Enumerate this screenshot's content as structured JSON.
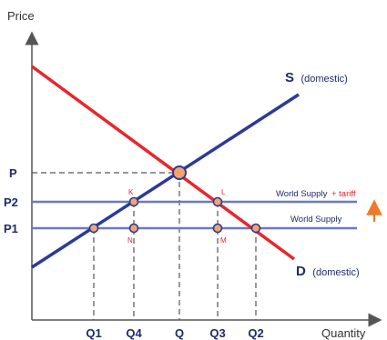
{
  "axes": {
    "y_label": "Price",
    "x_label": "Quantity"
  },
  "price_labels": {
    "p": "P",
    "p2": "P2",
    "p1": "P1"
  },
  "quantity_labels": {
    "q1": "Q1",
    "q4": "Q4",
    "q": "Q",
    "q3": "Q3",
    "q2": "Q2"
  },
  "curves": {
    "supply_letter": "S",
    "supply_suffix": "(domestic)",
    "demand_letter": "D",
    "demand_suffix": "(domestic)"
  },
  "price_lines": {
    "world_supply_tariff": "World Supply",
    "tariff_suffix": "+ tariff",
    "world_supply": "World Supply"
  },
  "points": {
    "k": "K",
    "l": "L",
    "n": "N",
    "m": "M"
  },
  "colors": {
    "supply": "#2b3a9a",
    "demand": "#e8262c",
    "price_line": "#6b78c4",
    "point_fill": "#f2a56b",
    "tariff_arrow": "#f07a2a",
    "axis_text": "#1f2a6d",
    "point_label": "#e8262c"
  }
}
